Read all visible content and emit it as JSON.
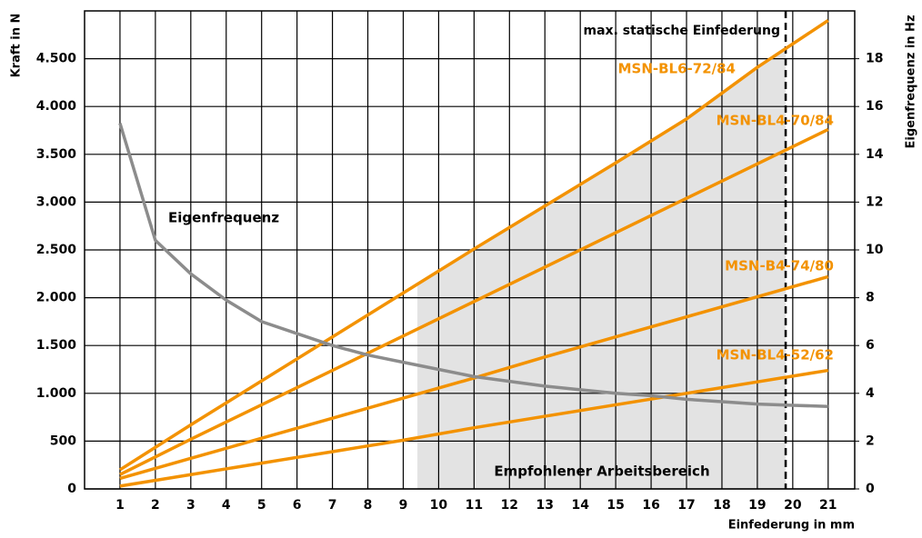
{
  "chart_data": {
    "type": "line",
    "y_label": "Kraft in N",
    "y2_label": "Eigenfrequenz in Hz",
    "x_label": "Einfederung in mm",
    "xlim": [
      0,
      21.75
    ],
    "xticks": [
      1,
      2,
      3,
      4,
      5,
      6,
      7,
      8,
      9,
      10,
      11,
      12,
      13,
      14,
      15,
      16,
      17,
      18,
      19,
      20,
      21
    ],
    "ylim": [
      0,
      5000
    ],
    "yticks": [
      0,
      500,
      {
        "value": 1000,
        "label": "1.000"
      },
      {
        "value": 1500,
        "label": "1.500"
      },
      {
        "value": 2000,
        "label": "2.000"
      },
      {
        "value": 2500,
        "label": "2.500"
      },
      {
        "value": 3000,
        "label": "3.000"
      },
      {
        "value": 3500,
        "label": "3.500"
      },
      {
        "value": 4000,
        "label": "4.000"
      },
      {
        "value": 4500,
        "label": "4.500"
      }
    ],
    "y2lim": [
      0,
      20
    ],
    "y2ticks": [
      0,
      2,
      4,
      6,
      8,
      10,
      12,
      14,
      16,
      18
    ],
    "grid": true,
    "recommended_range": [
      9.4,
      19.8
    ],
    "recommended_label": "Empfohlener Arbeitsbereich",
    "max_label": "max. statische Einfederung",
    "series": [
      {
        "name": "MSN-BL6-72/84",
        "color": "#f39200",
        "x": [
          1,
          3,
          5,
          7,
          9,
          11,
          13,
          15,
          17,
          19,
          21
        ],
        "values": [
          200,
          670,
          1130,
          1590,
          2050,
          2510,
          2960,
          3410,
          3870,
          4410,
          4900
        ]
      },
      {
        "name": "MSN-BL4-70/84",
        "color": "#f39200",
        "x": [
          1,
          3,
          5,
          7,
          9,
          11,
          13,
          15,
          17,
          19,
          21
        ],
        "values": [
          150,
          520,
          880,
          1240,
          1600,
          1960,
          2320,
          2680,
          3040,
          3400,
          3760
        ]
      },
      {
        "name": "MSN-B4-74/80",
        "color": "#f39200",
        "x": [
          1,
          3,
          5,
          7,
          9,
          11,
          13,
          15,
          17,
          19,
          21
        ],
        "values": [
          110,
          320,
          530,
          740,
          950,
          1160,
          1380,
          1590,
          1800,
          2010,
          2220
        ]
      },
      {
        "name": "MSN-BL4-52/62",
        "color": "#f39200",
        "x": [
          1,
          3,
          5,
          7,
          9,
          11,
          13,
          15,
          17,
          19,
          21
        ],
        "values": [
          30,
          150,
          270,
          390,
          510,
          640,
          760,
          880,
          1000,
          1120,
          1240
        ]
      },
      {
        "name": "Eigenfrequenz",
        "color": "#8c8c8c",
        "axis": "y2",
        "x": [
          1,
          2,
          3,
          4,
          5,
          6,
          7,
          8,
          9,
          10,
          11,
          12,
          13,
          14,
          15,
          16,
          17,
          18,
          19,
          20,
          21
        ],
        "values": [
          15.3,
          10.4,
          9.0,
          7.9,
          7.0,
          6.5,
          6.0,
          5.6,
          5.3,
          5.0,
          4.7,
          4.5,
          4.3,
          4.15,
          4.0,
          3.9,
          3.75,
          3.65,
          3.55,
          3.5,
          3.45
        ]
      }
    ]
  }
}
